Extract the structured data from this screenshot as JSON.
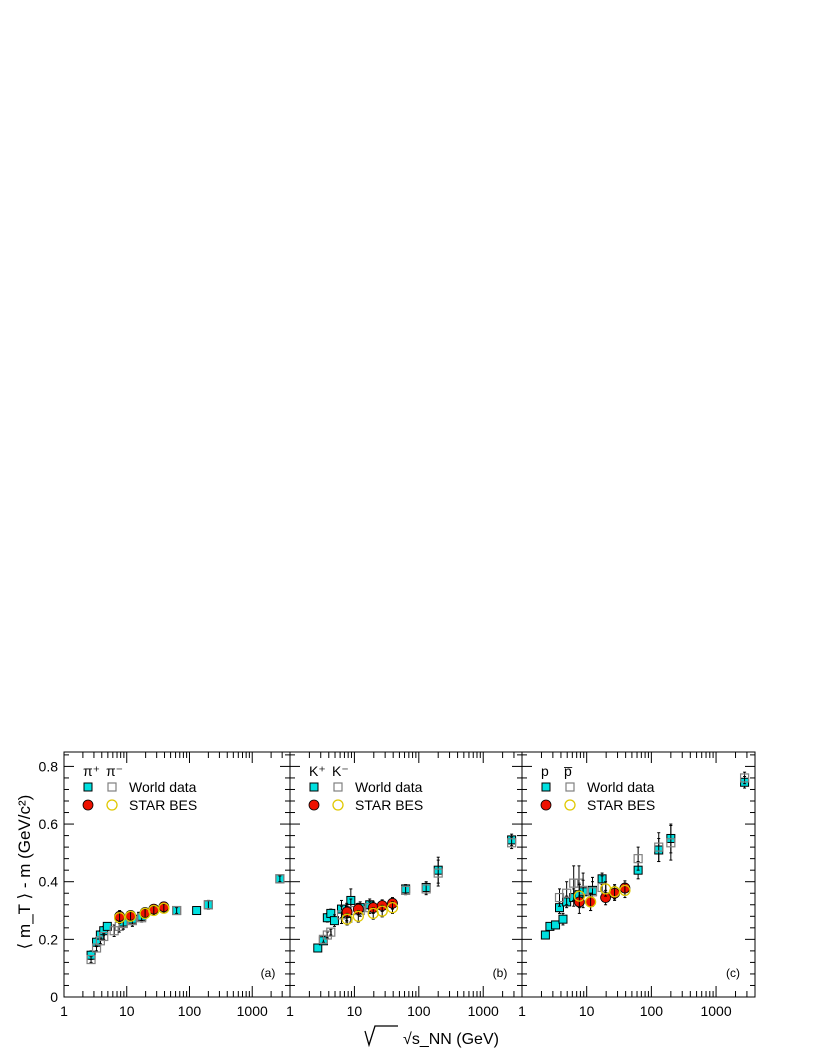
{
  "figure": {
    "ylabel": "⟨ m_T ⟩ - m (GeV/c²)",
    "xlabel": "√s_NN (GeV)",
    "xlim": [
      1,
      4000
    ],
    "ylim": [
      0,
      0.85
    ],
    "xscale": "log",
    "x_tick_labels": [
      "1",
      "10",
      "100",
      "1000"
    ],
    "y_tick_labels": [
      "0",
      "0.2",
      "0.4",
      "0.6",
      "0.8"
    ],
    "legend_world": "World data",
    "legend_star": "STAR BES",
    "colors": {
      "world_pos": "#00e0e0",
      "world_neg": "#808080",
      "star_pos": "#ee1100",
      "star_neg": "#e0c800"
    }
  },
  "chart_data": [
    {
      "type": "scatter",
      "panel_label": "(a)",
      "legend_pos_label": "π⁺",
      "legend_neg_label": "π⁻",
      "xlim": [
        1,
        4000
      ],
      "ylim": [
        0,
        0.85
      ],
      "xscale": "log",
      "series": [
        {
          "name": "World data",
          "charge": "pos",
          "kind": "world",
          "x": [
            2.7,
            3.3,
            3.8,
            4.3,
            4.9,
            8.8,
            12.3,
            17.3,
            62.4,
            130,
            200,
            2760
          ],
          "y": [
            0.145,
            0.19,
            0.215,
            0.23,
            0.245,
            0.26,
            0.27,
            0.28,
            0.3,
            0.3,
            0.32,
            0.41
          ],
          "err": [
            0.015,
            0.015,
            0.015,
            0.015,
            0.01,
            0.02,
            0.02,
            0.015,
            0.01,
            0.01,
            0.015,
            0.01
          ]
        },
        {
          "name": "World data",
          "charge": "neg",
          "kind": "world",
          "x": [
            2.7,
            3.3,
            3.8,
            4.3,
            6.3,
            7.6,
            8.8,
            12.3,
            17.3,
            62.4,
            200,
            2760
          ],
          "y": [
            0.13,
            0.17,
            0.195,
            0.21,
            0.23,
            0.245,
            0.255,
            0.265,
            0.275,
            0.3,
            0.32,
            0.41
          ],
          "err": [
            0.01,
            0.01,
            0.01,
            0.01,
            0.02,
            0.02,
            0.02,
            0.02,
            0.015,
            0.01,
            0.015,
            0.01
          ]
        },
        {
          "name": "STAR BES",
          "charge": "pos",
          "kind": "star",
          "x": [
            7.7,
            11.5,
            19.6,
            27,
            39
          ],
          "y": [
            0.28,
            0.283,
            0.293,
            0.305,
            0.313
          ],
          "err": [
            0.02,
            0.015,
            0.015,
            0.015,
            0.015
          ]
        },
        {
          "name": "STAR BES",
          "charge": "neg",
          "kind": "star",
          "x": [
            7.7,
            11.5,
            19.6,
            27,
            39
          ],
          "y": [
            0.275,
            0.28,
            0.29,
            0.3,
            0.308
          ],
          "err": [
            0.02,
            0.015,
            0.015,
            0.015,
            0.015
          ]
        }
      ]
    },
    {
      "type": "scatter",
      "panel_label": "(b)",
      "legend_pos_label": "K⁺",
      "legend_neg_label": "K⁻",
      "xlim": [
        1,
        4000
      ],
      "ylim": [
        0,
        0.85
      ],
      "xscale": "log",
      "series": [
        {
          "name": "World data",
          "charge": "pos",
          "kind": "world",
          "x": [
            2.7,
            3.3,
            3.8,
            4.3,
            4.9,
            6.3,
            7.6,
            8.8,
            12.3,
            17.3,
            62.4,
            130,
            200,
            2760
          ],
          "y": [
            0.17,
            0.195,
            0.275,
            0.29,
            0.265,
            0.305,
            0.29,
            0.335,
            0.31,
            0.32,
            0.375,
            0.38,
            0.44,
            0.545
          ],
          "err": [
            0.01,
            0.01,
            0.015,
            0.015,
            0.02,
            0.03,
            0.03,
            0.04,
            0.02,
            0.02,
            0.015,
            0.02,
            0.045,
            0.02
          ]
        },
        {
          "name": "World data",
          "charge": "neg",
          "kind": "world",
          "x": [
            3.3,
            3.8,
            4.3,
            6.3,
            7.6,
            8.8,
            12.3,
            17.3,
            62.4,
            130,
            200,
            2760
          ],
          "y": [
            0.2,
            0.215,
            0.225,
            0.285,
            0.295,
            0.3,
            0.3,
            0.31,
            0.37,
            0.375,
            0.43,
            0.535
          ],
          "err": [
            0.01,
            0.01,
            0.01,
            0.03,
            0.03,
            0.04,
            0.02,
            0.02,
            0.015,
            0.02,
            0.045,
            0.02
          ]
        },
        {
          "name": "STAR BES",
          "charge": "pos",
          "kind": "star",
          "x": [
            7.7,
            11.5,
            19.6,
            27,
            39
          ],
          "y": [
            0.295,
            0.305,
            0.31,
            0.317,
            0.325
          ],
          "err": [
            0.02,
            0.02,
            0.02,
            0.02,
            0.02
          ]
        },
        {
          "name": "STAR BES",
          "charge": "neg",
          "kind": "star",
          "x": [
            7.7,
            11.5,
            19.6,
            27,
            39
          ],
          "y": [
            0.27,
            0.28,
            0.29,
            0.298,
            0.31
          ],
          "err": [
            0.02,
            0.02,
            0.02,
            0.02,
            0.02
          ]
        }
      ]
    },
    {
      "type": "scatter",
      "panel_label": "(c)",
      "legend_pos_label": "p",
      "legend_neg_label": "p̅",
      "xlim": [
        1,
        4000
      ],
      "ylim": [
        0,
        0.85
      ],
      "xscale": "log",
      "series": [
        {
          "name": "World data",
          "charge": "pos",
          "kind": "world",
          "x": [
            2.3,
            2.7,
            3.3,
            3.8,
            4.3,
            4.9,
            6.3,
            7.6,
            8.8,
            12.3,
            17.3,
            62.4,
            130,
            200,
            2760
          ],
          "y": [
            0.215,
            0.245,
            0.25,
            0.31,
            0.27,
            0.33,
            0.345,
            0.355,
            0.365,
            0.37,
            0.41,
            0.44,
            0.51,
            0.55,
            0.745
          ],
          "err": [
            0.01,
            0.01,
            0.01,
            0.02,
            0.02,
            0.02,
            0.03,
            0.04,
            0.04,
            0.03,
            0.02,
            0.03,
            0.04,
            0.05,
            0.02
          ]
        },
        {
          "name": "World data",
          "charge": "neg",
          "kind": "world",
          "x": [
            3.8,
            4.9,
            6.3,
            7.6,
            8.8,
            12.3,
            17.3,
            62.4,
            130,
            200,
            2760
          ],
          "y": [
            0.345,
            0.36,
            0.395,
            0.395,
            0.37,
            0.365,
            0.38,
            0.48,
            0.52,
            0.535,
            0.76
          ],
          "err": [
            0.03,
            0.04,
            0.06,
            0.06,
            0.06,
            0.05,
            0.04,
            0.04,
            0.05,
            0.06,
            0.02
          ]
        },
        {
          "name": "STAR BES",
          "charge": "pos",
          "kind": "star",
          "x": [
            7.7,
            11.5,
            19.6,
            27,
            39
          ],
          "y": [
            0.33,
            0.33,
            0.345,
            0.36,
            0.378
          ],
          "err": [
            0.04,
            0.03,
            0.025,
            0.025,
            0.025
          ]
        },
        {
          "name": "STAR BES",
          "charge": "neg",
          "kind": "star",
          "x": [
            7.7,
            11.5,
            19.6,
            27,
            39
          ],
          "y": [
            0.35,
            0.33,
            0.375,
            0.365,
            0.37
          ],
          "err": [
            0.04,
            0.03,
            0.025,
            0.025,
            0.025
          ]
        }
      ]
    }
  ]
}
